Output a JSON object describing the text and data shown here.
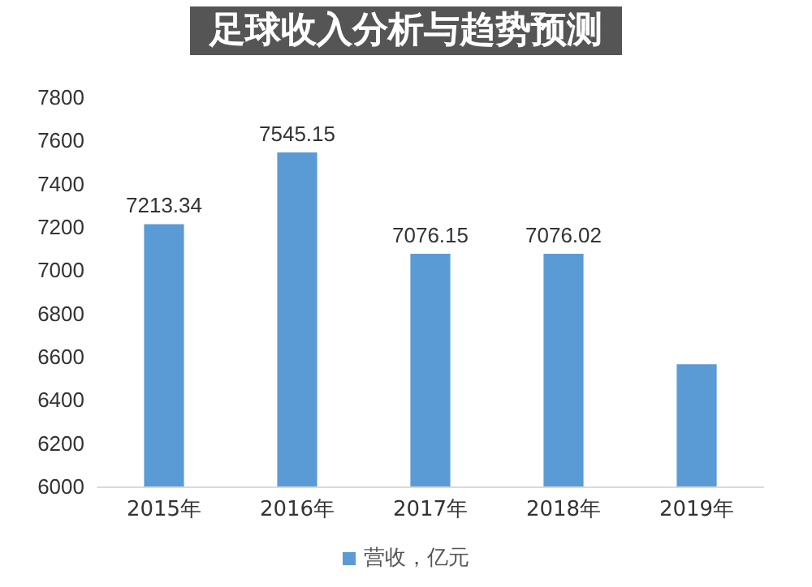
{
  "chart_data": {
    "type": "bar",
    "title": "足球收入分析与趋势预测",
    "categories": [
      "2015年",
      "2016年",
      "2017年",
      "2018年",
      "2019年"
    ],
    "series": [
      {
        "name": "营收，亿元",
        "color": "#5b9bd5",
        "values": [
          7213.34,
          7545.15,
          7076.15,
          7076.02,
          6565
        ],
        "value_labels": [
          "7213.34",
          "7545.15",
          "7076.15",
          "7076.02",
          null
        ]
      }
    ],
    "ylim": [
      6000,
      7800
    ],
    "yticks": [
      6000,
      6200,
      6400,
      6600,
      6800,
      7000,
      7200,
      7400,
      7600,
      7800
    ],
    "grid": false,
    "legend": "bottom"
  }
}
